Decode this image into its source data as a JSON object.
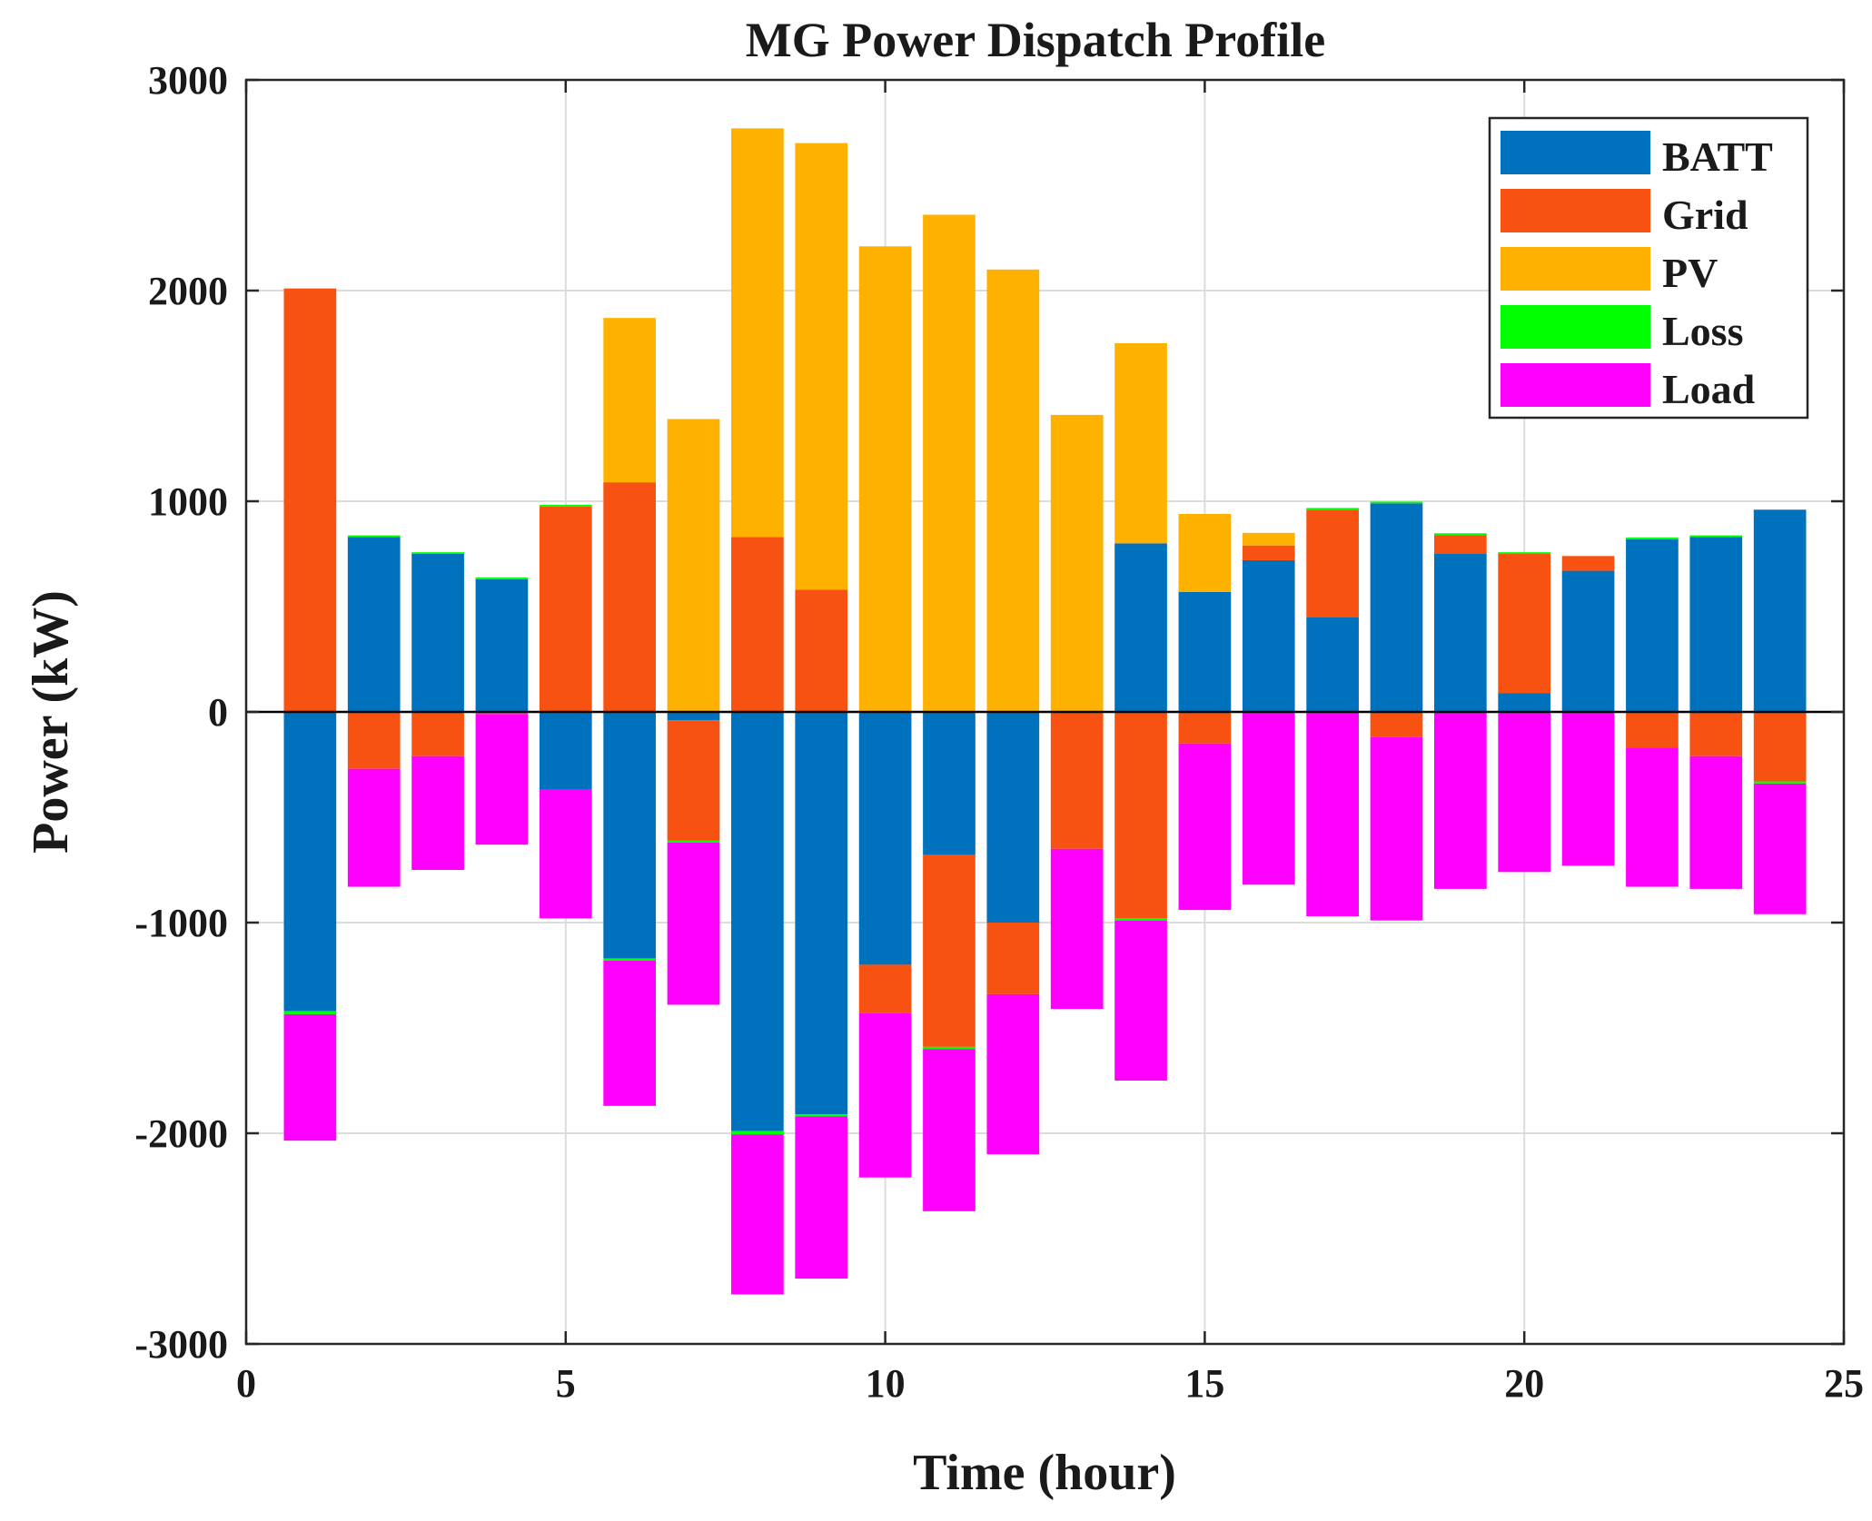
{
  "chart_data": {
    "type": "bar",
    "stacked": true,
    "title": "MG Power Dispatch Profile",
    "xlabel": "Time (hour)",
    "ylabel": "Power (kW)",
    "xlim": [
      0,
      25
    ],
    "ylim": [
      -3000,
      3000
    ],
    "xticks": [
      0,
      5,
      10,
      15,
      20,
      25
    ],
    "yticks": [
      -3000,
      -2000,
      -1000,
      0,
      1000,
      2000,
      3000
    ],
    "grid": true,
    "legend_position": "top-right",
    "x": [
      1,
      2,
      3,
      4,
      5,
      6,
      7,
      8,
      9,
      10,
      11,
      12,
      13,
      14,
      15,
      16,
      17,
      18,
      19,
      20,
      21,
      22,
      23,
      24
    ],
    "series": [
      {
        "name": "BATT",
        "color": "#0072BD",
        "values": [
          -1420,
          830,
          750,
          630,
          -370,
          -1170,
          -40,
          -1990,
          -1910,
          -1200,
          -680,
          -1000,
          0,
          800,
          570,
          720,
          450,
          990,
          750,
          90,
          670,
          820,
          830,
          960
        ]
      },
      {
        "name": "Grid",
        "color": "#F85212",
        "values": [
          2010,
          -270,
          -210,
          -10,
          975,
          1090,
          -570,
          830,
          580,
          -230,
          -910,
          -340,
          -650,
          -980,
          -150,
          70,
          510,
          -120,
          90,
          660,
          70,
          -170,
          -210,
          -330
        ]
      },
      {
        "name": "PV",
        "color": "#FFB100",
        "values": [
          0,
          0,
          0,
          0,
          0,
          780,
          1390,
          1940,
          2120,
          2210,
          2360,
          2100,
          1410,
          950,
          370,
          60,
          0,
          0,
          0,
          0,
          0,
          0,
          0,
          0
        ]
      },
      {
        "name": "Loss",
        "color": "#00FF00",
        "values": [
          -15,
          8,
          8,
          8,
          8,
          -10,
          -10,
          -15,
          -10,
          0,
          -10,
          0,
          0,
          -10,
          0,
          0,
          8,
          8,
          8,
          8,
          0,
          8,
          8,
          -10
        ]
      },
      {
        "name": "Load",
        "color": "#FF00FF",
        "values": [
          -600,
          -560,
          -540,
          -620,
          -610,
          -690,
          -770,
          -760,
          -770,
          -780,
          -770,
          -760,
          -760,
          -760,
          -790,
          -820,
          -970,
          -870,
          -840,
          -760,
          -730,
          -660,
          -630,
          -620
        ]
      }
    ]
  }
}
